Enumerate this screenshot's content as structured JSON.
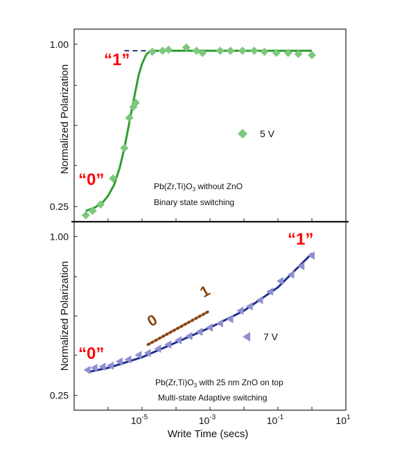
{
  "chart_data": [
    {
      "type": "scatter",
      "title": "",
      "xlabel": "",
      "ylabel": "Normalized Polarization",
      "x_scale": "log",
      "xlim": [
        1e-07,
        10
      ],
      "ylim": [
        0.18,
        1.07
      ],
      "y_ticks": [
        1.0,
        0.25
      ],
      "y_tick_labels": [
        "1.00",
        "0.25"
      ],
      "series": [
        {
          "name": "5 V",
          "marker": "diamond",
          "color": "#7ec87e",
          "x": [
            2.2e-07,
            3.5e-07,
            6e-07,
            1.4e-06,
            3e-06,
            4.2e-06,
            5.5e-06,
            6.5e-06,
            2e-05,
            4e-05,
            6e-05,
            0.0002,
            0.0004,
            0.0006,
            0.002,
            0.004,
            0.009,
            0.02,
            0.04,
            0.09,
            0.2,
            0.4,
            1
          ],
          "y": [
            0.21,
            0.23,
            0.26,
            0.38,
            0.52,
            0.66,
            0.71,
            0.73,
            0.965,
            0.97,
            0.975,
            0.985,
            0.97,
            0.96,
            0.97,
            0.97,
            0.97,
            0.97,
            0.965,
            0.96,
            0.96,
            0.955,
            0.95
          ]
        }
      ],
      "fit_curve": {
        "color": "#2e9e2e",
        "x": [
          2.2e-07,
          4e-07,
          7e-07,
          1e-06,
          1.5e-06,
          2.2e-06,
          3e-06,
          4e-06,
          5e-06,
          6.5e-06,
          8e-06,
          1e-05,
          1.3e-05,
          1.6e-05,
          2e-05,
          3e-05,
          0.0001,
          0.001,
          0.01,
          0.1,
          1
        ],
        "y": [
          0.23,
          0.245,
          0.27,
          0.3,
          0.35,
          0.43,
          0.52,
          0.62,
          0.7,
          0.79,
          0.86,
          0.91,
          0.95,
          0.965,
          0.97,
          0.97,
          0.97,
          0.97,
          0.97,
          0.97,
          0.97
        ]
      },
      "reference_line": {
        "y": 0.97,
        "x_from": 3e-06,
        "x_to": 2e-05,
        "color": "#1f3a6e",
        "style": "dashed"
      },
      "labels": {
        "state_zero": "“0”",
        "state_one": "“1”",
        "annotation_line1_before": "Pb(Zr,Ti)O",
        "annotation_line1_sub": "3",
        "annotation_line1_after": " without ZnO",
        "annotation_line2": "Binary state switching"
      }
    },
    {
      "type": "scatter",
      "title": "",
      "xlabel": "Write Time (secs)",
      "ylabel": "Normalized Polarization",
      "x_scale": "log",
      "xlim": [
        1e-07,
        10
      ],
      "ylim": [
        0.18,
        1.07
      ],
      "x_ticks": [
        1e-05,
        0.001,
        0.1,
        10
      ],
      "x_tick_labels": [
        {
          "base": "10",
          "exp": "-5"
        },
        {
          "base": "10",
          "exp": "-3"
        },
        {
          "base": "10",
          "exp": "-1"
        },
        {
          "base": "10",
          "exp": "1"
        }
      ],
      "y_ticks": [
        1.0,
        0.25
      ],
      "y_tick_labels": [
        "1.00",
        "0.25"
      ],
      "series": [
        {
          "name": "7 V",
          "marker": "triangle-left",
          "color": "#8f8fd0",
          "x": [
            2.5e-07,
            4e-07,
            7e-07,
            1.2e-06,
            2.2e-06,
            4e-06,
            8e-06,
            1.5e-05,
            3e-05,
            6e-05,
            0.00012,
            0.00025,
            0.0005,
            0.001,
            0.002,
            0.004,
            0.008,
            0.015,
            0.03,
            0.06,
            0.12,
            0.25,
            0.5,
            1
          ],
          "y": [
            0.37,
            0.38,
            0.385,
            0.39,
            0.41,
            0.42,
            0.44,
            0.45,
            0.47,
            0.49,
            0.51,
            0.53,
            0.55,
            0.57,
            0.59,
            0.61,
            0.65,
            0.67,
            0.7,
            0.74,
            0.79,
            0.82,
            0.86,
            0.91
          ]
        }
      ],
      "fit_curve": {
        "color": "#1f2f8c",
        "x": [
          2.5e-07,
          1e-06,
          1e-05,
          0.0001,
          0.001,
          0.01,
          0.1,
          1
        ],
        "y": [
          0.36,
          0.38,
          0.43,
          0.5,
          0.57,
          0.65,
          0.76,
          0.92
        ]
      },
      "transition_arrow": {
        "x_from": 1.5e-05,
        "x_to": 0.001,
        "y_from": 0.49,
        "y_to": 0.65,
        "color": "#8b4513",
        "style": "dotted"
      },
      "labels": {
        "state_zero": "“0”",
        "state_one": "“1”",
        "range_start": "0",
        "range_end": "1",
        "annotation_line1_before": "Pb(Zr,Ti)O",
        "annotation_line1_sub": "3",
        "annotation_line1_after": " with 25 nm ZnO on top",
        "annotation_line2": "Multi-state Adaptive switching"
      }
    }
  ]
}
